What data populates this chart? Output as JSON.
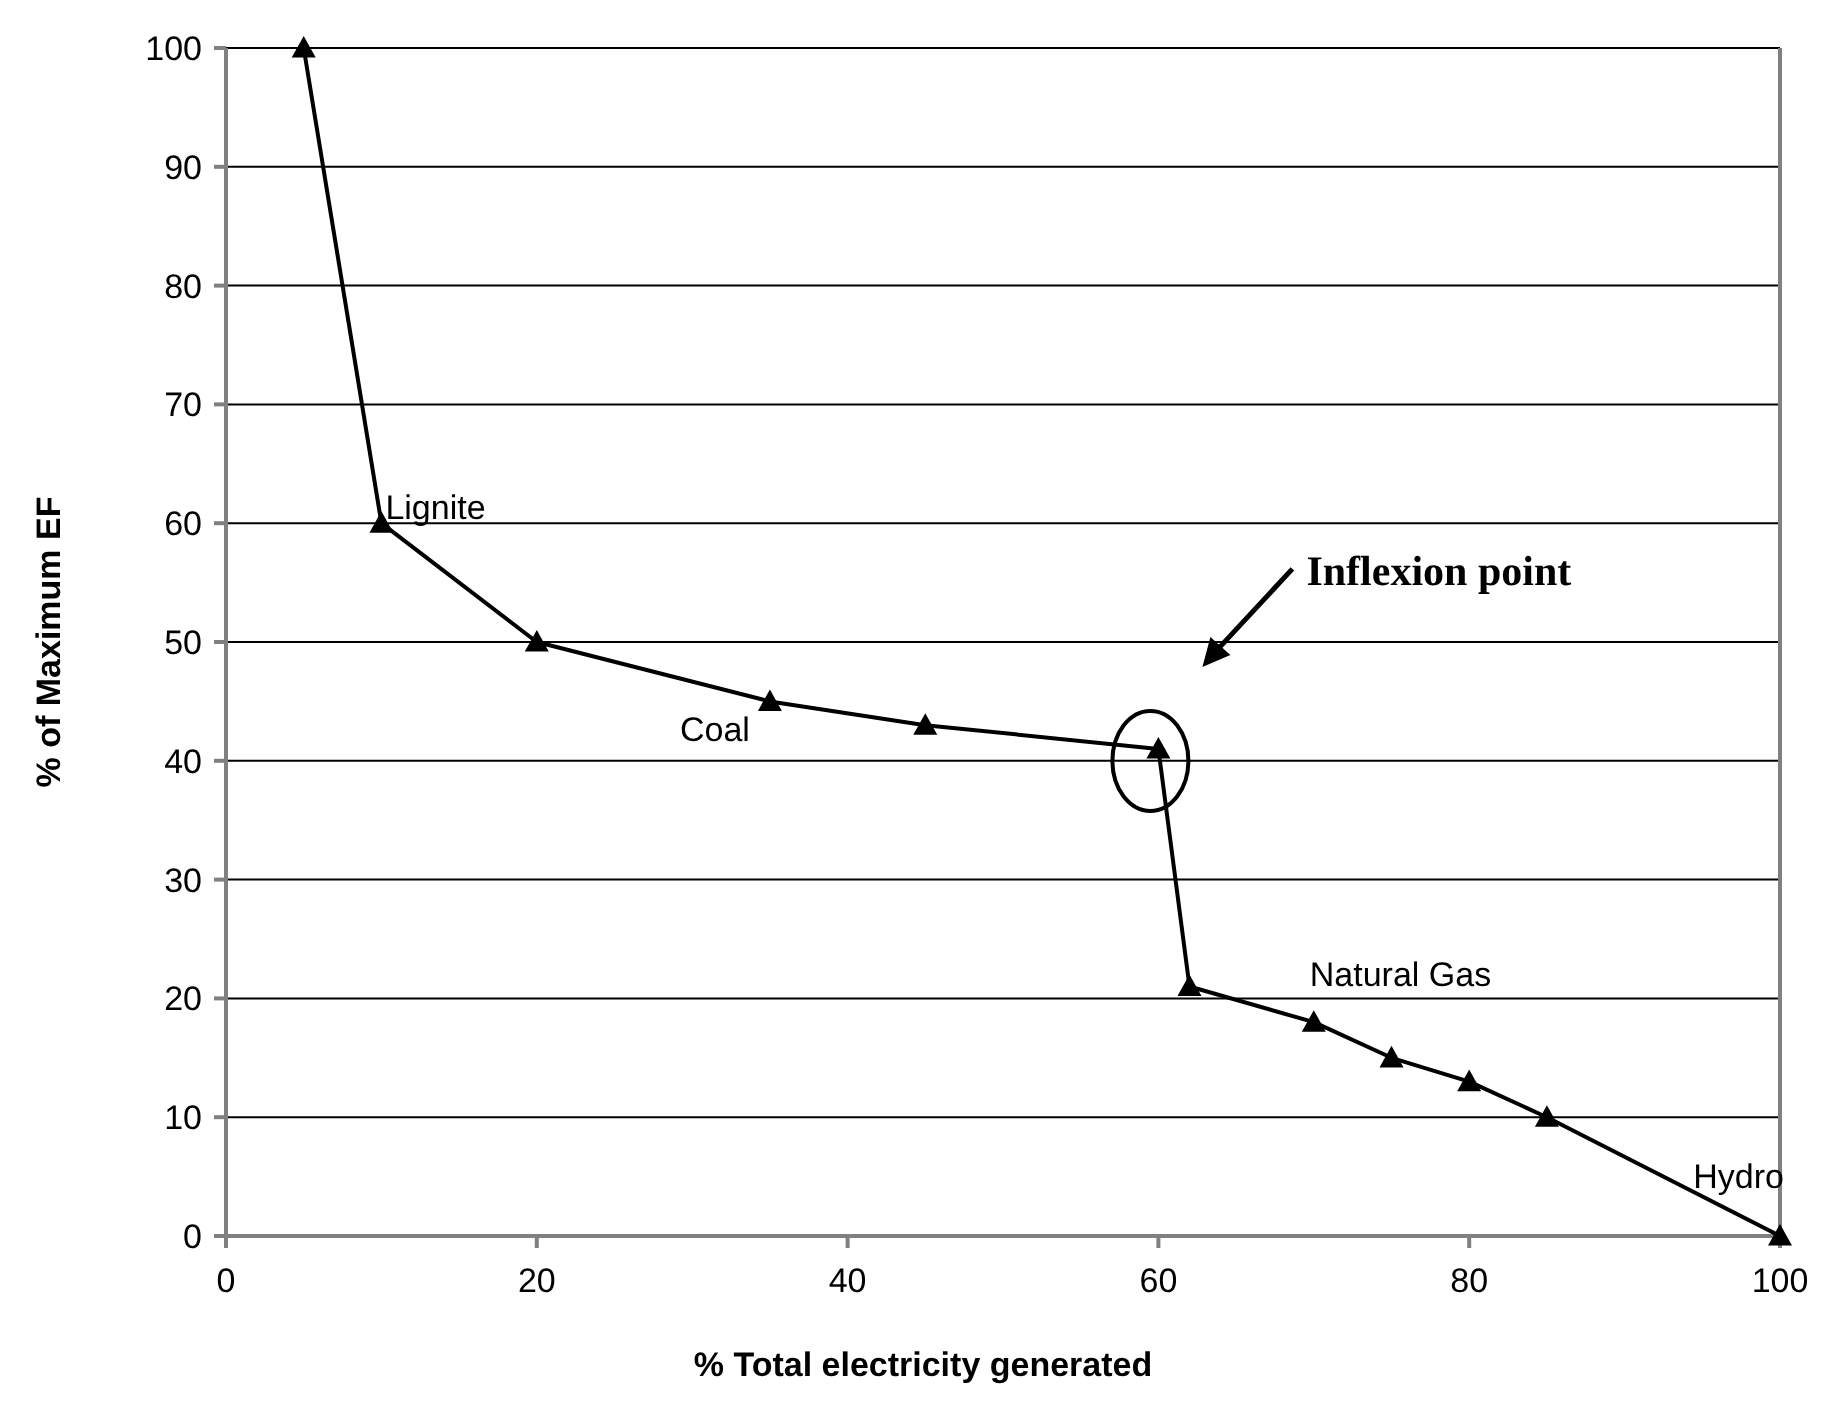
{
  "chart_data": {
    "type": "line",
    "xlabel": "% Total electricity generated",
    "ylabel": "% of Maximum EF",
    "x": [
      5,
      10,
      20,
      35,
      45,
      60,
      62,
      70,
      75,
      80,
      85,
      100
    ],
    "series": [
      {
        "color": "#000000",
        "values": [
          100,
          60,
          50,
          45,
          43,
          41,
          21,
          18,
          15,
          13,
          10,
          0
        ]
      }
    ],
    "xlim": [
      0,
      100
    ],
    "xticks": [
      0,
      20,
      40,
      60,
      80,
      100
    ],
    "ylim": [
      0,
      100
    ],
    "yticks": [
      0,
      10,
      20,
      30,
      40,
      50,
      60,
      70,
      80,
      90,
      100
    ],
    "grid": "y",
    "marker": "triangle",
    "line_style": "solid",
    "annotations": [
      {
        "text": "Lignite",
        "x": 10,
        "y": 60
      },
      {
        "text": "Coal",
        "x": 35,
        "y": 45
      },
      {
        "text": "Natural Gas",
        "x": 70,
        "y": 18
      },
      {
        "text": "Hydro",
        "x": 100,
        "y": 0
      },
      "Inflexion point"
    ]
  }
}
